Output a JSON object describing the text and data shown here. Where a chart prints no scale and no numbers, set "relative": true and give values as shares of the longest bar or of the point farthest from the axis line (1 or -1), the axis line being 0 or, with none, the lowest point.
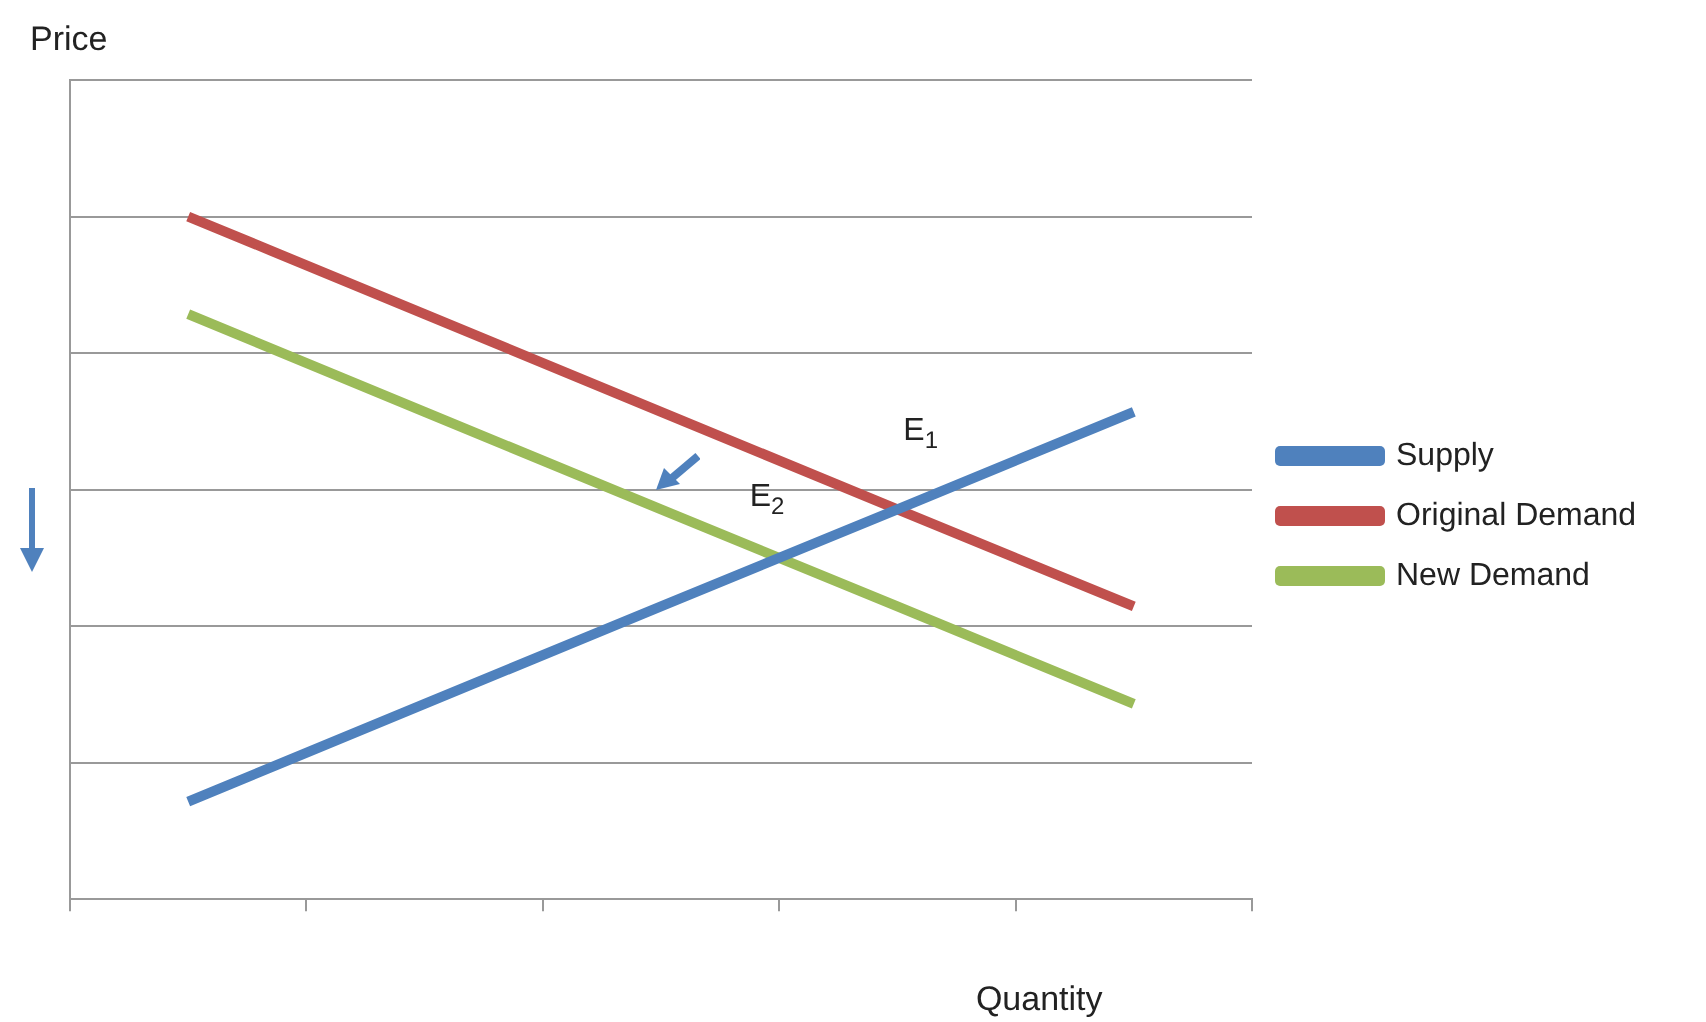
{
  "chart_data": {
    "type": "line",
    "relative": true,
    "xlabel": "Quantity",
    "ylabel": "Price",
    "categories": [
      null,
      null,
      null,
      null,
      null
    ],
    "series": [
      {
        "name": "Supply",
        "color": "#4f81bd",
        "values": [
          0.143,
          0.286,
          0.429,
          0.571,
          0.714
        ]
      },
      {
        "name": "Original Demand",
        "color": "#c0504d",
        "values": [
          1,
          0.857,
          0.714,
          0.571,
          0.429
        ]
      },
      {
        "name": "New Demand",
        "color": "#9bbb59",
        "values": [
          0.857,
          0.714,
          0.571,
          0.429,
          0.286
        ]
      }
    ],
    "annotations": [
      "E$_{1}$",
      "E$_{2}$"
    ],
    "grid": "y",
    "legend": "right",
    "marker": "none",
    "line_style": "solid"
  }
}
